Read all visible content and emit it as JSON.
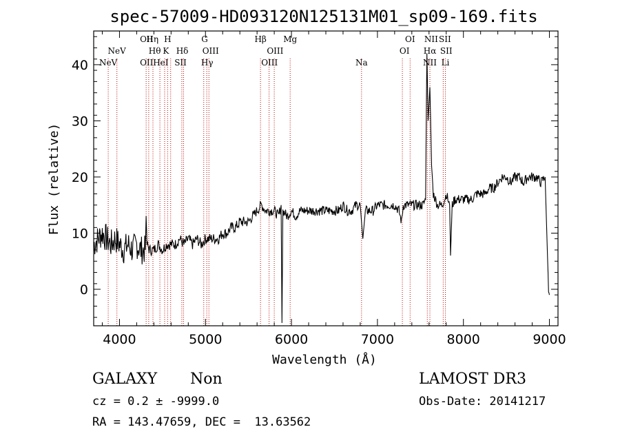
{
  "chart_data": {
    "type": "line",
    "title": "spec-57009-HD093120N125131M01_sp09-169.fits",
    "xlabel": "Wavelength (Å)",
    "ylabel": "Flux (relative)",
    "xlim": [
      3700,
      9100
    ],
    "ylim": [
      -6.5,
      46
    ],
    "xticks": [
      4000,
      5000,
      6000,
      7000,
      8000,
      9000
    ],
    "yticks": [
      0,
      10,
      20,
      30,
      40
    ],
    "series": [
      {
        "name": "flux",
        "x": [
          3700,
          3750,
          3800,
          3850,
          3900,
          3950,
          4000,
          4050,
          4100,
          4150,
          4200,
          4250,
          4300,
          4310,
          4320,
          4350,
          4400,
          4450,
          4500,
          4550,
          4600,
          4650,
          4700,
          4750,
          4800,
          4850,
          4900,
          4950,
          5000,
          5050,
          5100,
          5150,
          5200,
          5250,
          5300,
          5350,
          5400,
          5450,
          5500,
          5550,
          5600,
          5650,
          5700,
          5750,
          5800,
          5850,
          5880,
          5890,
          5900,
          5950,
          6000,
          6050,
          6100,
          6150,
          6200,
          6250,
          6300,
          6350,
          6400,
          6450,
          6500,
          6550,
          6600,
          6650,
          6700,
          6750,
          6800,
          6830,
          6860,
          6900,
          6950,
          7000,
          7050,
          7100,
          7150,
          7200,
          7250,
          7280,
          7300,
          7350,
          7400,
          7450,
          7500,
          7530,
          7560,
          7575,
          7590,
          7610,
          7630,
          7650,
          7700,
          7750,
          7780,
          7800,
          7820,
          7840,
          7850,
          7870,
          7900,
          7950,
          8000,
          8050,
          8100,
          8150,
          8200,
          8250,
          8300,
          8350,
          8400,
          8450,
          8500,
          8550,
          8600,
          8650,
          8700,
          8750,
          8800,
          8850,
          8900,
          8950,
          8990,
          9000
        ],
        "y": [
          8,
          9,
          10,
          9,
          8,
          9,
          8,
          7,
          8,
          7,
          8,
          7,
          7,
          13,
          8,
          7,
          7,
          8,
          7,
          8,
          8,
          8,
          9,
          8,
          9,
          8,
          9,
          8,
          9,
          9,
          9,
          9,
          10,
          10,
          11,
          11,
          12,
          12,
          12,
          13,
          14,
          15,
          14,
          14,
          14,
          13,
          15,
          -6,
          14,
          13,
          14,
          13,
          14,
          14,
          14,
          14,
          14,
          14,
          14,
          14,
          14,
          14,
          15,
          14,
          14,
          15,
          15,
          9,
          14,
          14,
          14,
          15,
          15,
          15,
          15,
          15,
          14,
          12,
          15,
          15,
          15,
          15,
          15,
          15,
          16,
          42,
          30,
          36,
          22,
          17,
          15,
          15,
          16,
          17,
          16,
          15,
          6,
          15,
          16,
          16,
          16,
          16,
          16,
          17,
          17,
          17,
          18,
          18,
          19,
          20,
          20,
          19,
          20,
          20,
          19,
          20,
          20,
          20,
          19,
          20,
          0,
          -1
        ]
      }
    ],
    "emission_lines": [
      {
        "label": "NeV",
        "x": 3869,
        "row": 3
      },
      {
        "label": "NeV",
        "x": 3970,
        "row": 2
      },
      {
        "label": "OII",
        "x": 4315,
        "row": 1
      },
      {
        "label": "OII",
        "x": 4315,
        "row": 3
      },
      {
        "label": "Hη",
        "x": 4383,
        "row": 1
      },
      {
        "label": "Hθ",
        "x": 4410,
        "row": 2
      },
      {
        "label": "HeI",
        "x": 4480,
        "row": 3
      },
      {
        "label": "H",
        "x": 4560,
        "row": 1
      },
      {
        "label": "K",
        "x": 4540,
        "row": 2
      },
      {
        "label": "Hδ",
        "x": 4730,
        "row": 2
      },
      {
        "label": "SII",
        "x": 4710,
        "row": 3
      },
      {
        "label": "G",
        "x": 4990,
        "row": 1
      },
      {
        "label": "OIII",
        "x": 5060,
        "row": 2
      },
      {
        "label": "Hγ",
        "x": 5020,
        "row": 3
      },
      {
        "label": "Hβ",
        "x": 5640,
        "row": 1
      },
      {
        "label": "OIII",
        "x": 5810,
        "row": 2
      },
      {
        "label": "OIII",
        "x": 5745,
        "row": 3
      },
      {
        "label": "Mg",
        "x": 5985,
        "row": 1
      },
      {
        "label": "Na",
        "x": 6815,
        "row": 3
      },
      {
        "label": "OI",
        "x": 7380,
        "row": 1
      },
      {
        "label": "OI",
        "x": 7315,
        "row": 2
      },
      {
        "label": "NII",
        "x": 7625,
        "row": 1
      },
      {
        "label": "Hα",
        "x": 7610,
        "row": 2
      },
      {
        "label": "NII",
        "x": 7610,
        "row": 3
      },
      {
        "label": "SII",
        "x": 7785,
        "row": 1
      },
      {
        "label": "SII",
        "x": 7800,
        "row": 2
      },
      {
        "label": "Li",
        "x": 7790,
        "row": 3
      }
    ],
    "marker_lines_x": [
      3869,
      3970,
      4310,
      4340,
      4389,
      4470,
      4525,
      4560,
      4595,
      4725,
      4745,
      4980,
      5015,
      5040,
      5640,
      5740,
      5800,
      5985,
      6815,
      7290,
      7380,
      7580,
      7610,
      7765,
      7790
    ],
    "line_color": "#000000",
    "marker_color": "#c00000"
  },
  "footer": {
    "object_class": "GALAXY",
    "subclass": "Non",
    "redshift": "cz = 0.2 ± -9999.0",
    "coords": "RA = 143.47659, DEC =  13.63562",
    "survey": "LAMOST DR3",
    "obs_date": "Obs-Date: 20141217"
  }
}
